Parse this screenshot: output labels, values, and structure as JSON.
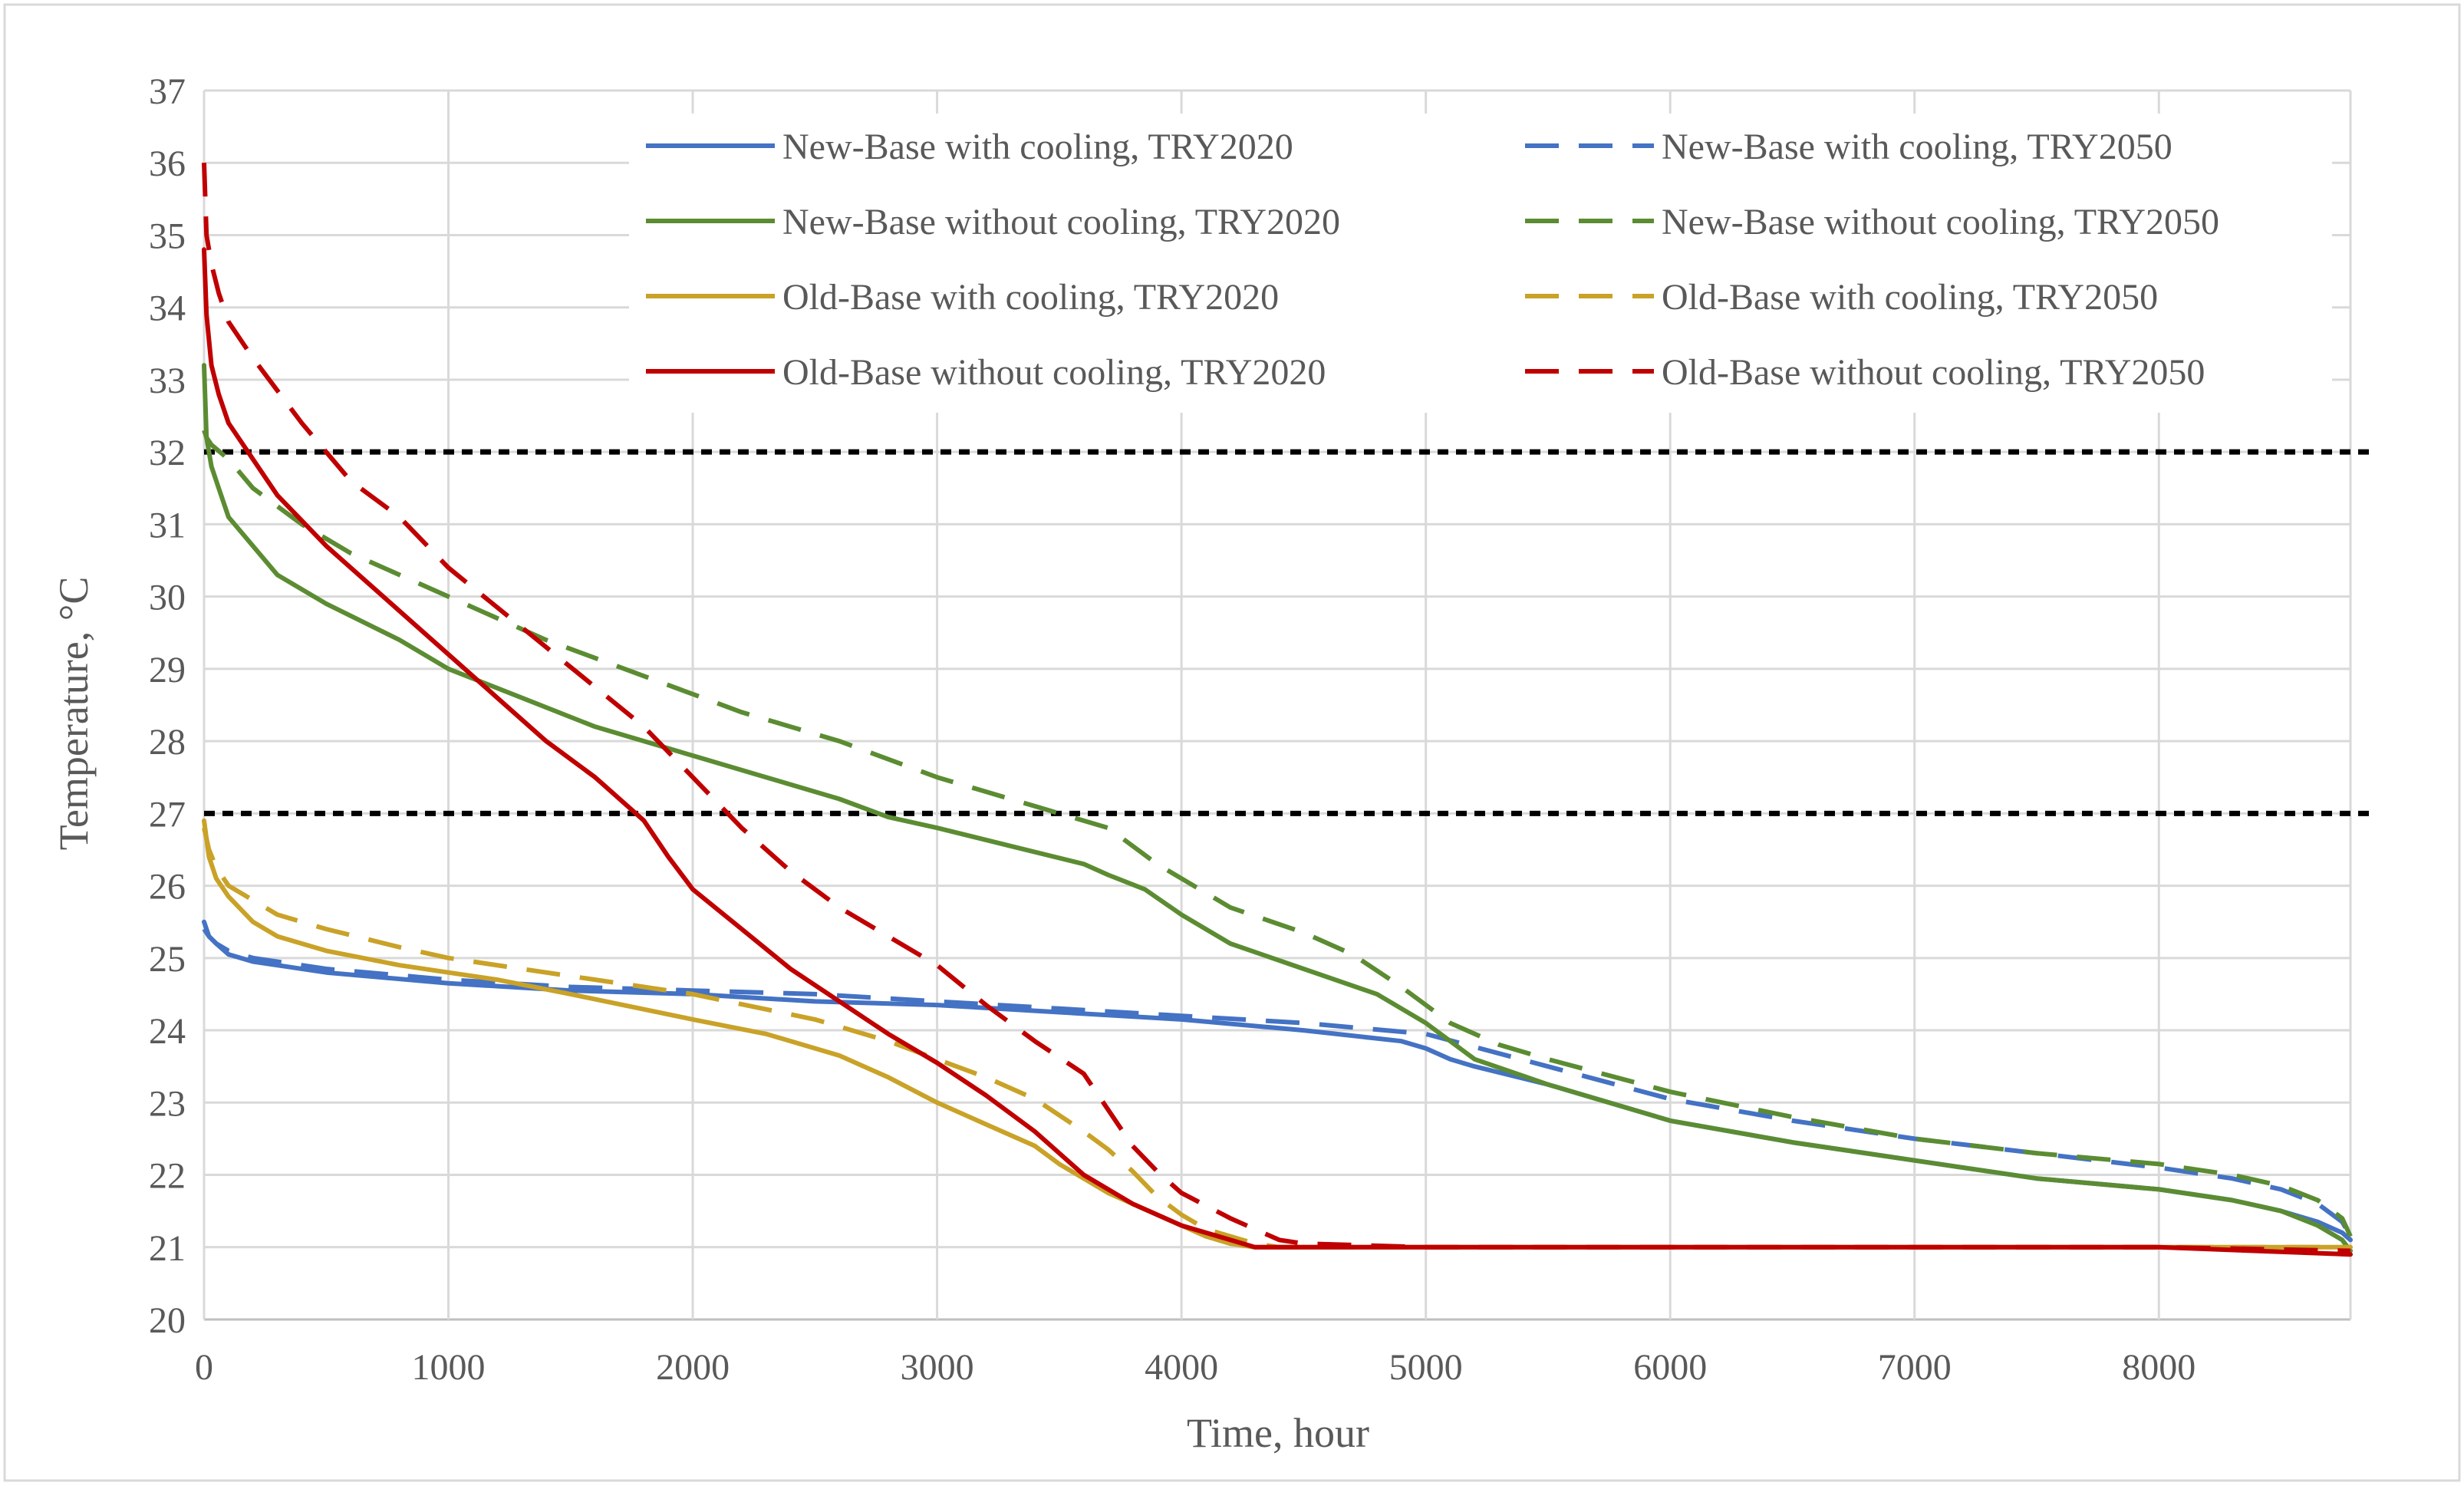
{
  "chart_data": {
    "type": "line",
    "title": "",
    "xlabel": "Time, hour",
    "ylabel": "Temperature, °C",
    "xlim": [
      0,
      8784
    ],
    "ylim": [
      20,
      37
    ],
    "xticks": [
      0,
      1000,
      2000,
      3000,
      4000,
      5000,
      6000,
      7000,
      8000
    ],
    "yticks": [
      20,
      21,
      22,
      23,
      24,
      25,
      26,
      27,
      28,
      29,
      30,
      31,
      32,
      33,
      34,
      35,
      36,
      37
    ],
    "grid": true,
    "legend_position": "top-right",
    "thresholds": [
      {
        "y": 32,
        "style": "dotted",
        "color": "#000000"
      },
      {
        "y": 27,
        "style": "dotted",
        "color": "#000000"
      }
    ],
    "series": [
      {
        "name": "New-Base with cooling, TRY2020",
        "color": "#4472C4",
        "dash": "solid",
        "x": [
          0,
          20,
          50,
          100,
          200,
          500,
          1000,
          1500,
          2000,
          2500,
          3000,
          3500,
          4000,
          4500,
          4900,
          5000,
          5100,
          5200,
          5500,
          6000,
          6500,
          7000,
          7500,
          8000,
          8300,
          8500,
          8650,
          8750,
          8784
        ],
        "y": [
          25.5,
          25.3,
          25.2,
          25.05,
          24.95,
          24.8,
          24.65,
          24.55,
          24.5,
          24.4,
          24.35,
          24.25,
          24.15,
          24.0,
          23.85,
          23.75,
          23.6,
          23.5,
          23.25,
          22.75,
          22.45,
          22.2,
          21.95,
          21.8,
          21.65,
          21.5,
          21.35,
          21.2,
          21.1
        ]
      },
      {
        "name": "New-Base with cooling, TRY2050",
        "color": "#4472C4",
        "dash": "dashed",
        "x": [
          0,
          20,
          50,
          100,
          200,
          500,
          1000,
          1500,
          2000,
          2500,
          3000,
          3500,
          4000,
          4500,
          5000,
          5500,
          6000,
          6500,
          7000,
          7500,
          8000,
          8300,
          8500,
          8650,
          8750,
          8784
        ],
        "y": [
          25.4,
          25.3,
          25.2,
          25.1,
          25.0,
          24.85,
          24.7,
          24.6,
          24.55,
          24.5,
          24.4,
          24.3,
          24.2,
          24.1,
          23.95,
          23.5,
          23.05,
          22.75,
          22.5,
          22.3,
          22.1,
          21.95,
          21.8,
          21.6,
          21.35,
          21.15
        ]
      },
      {
        "name": "New-Base without cooling, TRY2020",
        "color": "#5B8C32",
        "dash": "solid",
        "x": [
          0,
          10,
          30,
          60,
          100,
          200,
          300,
          500,
          800,
          1000,
          1300,
          1600,
          2000,
          2300,
          2600,
          2800,
          3000,
          3300,
          3600,
          3700,
          3850,
          4000,
          4200,
          4500,
          4800,
          5000,
          5100,
          5200,
          5500,
          6000,
          6500,
          7000,
          7500,
          8000,
          8300,
          8500,
          8650,
          8750,
          8784
        ],
        "y": [
          33.2,
          32.2,
          31.8,
          31.5,
          31.1,
          30.7,
          30.3,
          29.9,
          29.4,
          29.0,
          28.6,
          28.2,
          27.8,
          27.5,
          27.2,
          26.95,
          26.8,
          26.55,
          26.3,
          26.15,
          25.95,
          25.6,
          25.2,
          24.85,
          24.5,
          24.1,
          23.85,
          23.6,
          23.25,
          22.75,
          22.45,
          22.2,
          21.95,
          21.8,
          21.65,
          21.5,
          21.3,
          21.1,
          20.95
        ]
      },
      {
        "name": "New-Base without cooling, TRY2050",
        "color": "#5B8C32",
        "dash": "dashed",
        "x": [
          0,
          10,
          30,
          100,
          200,
          400,
          600,
          1000,
          1400,
          1800,
          2200,
          2600,
          3000,
          3400,
          3700,
          3900,
          4200,
          4500,
          4700,
          4900,
          5100,
          5300,
          5500,
          6000,
          6500,
          7000,
          7500,
          8000,
          8300,
          8500,
          8650,
          8750,
          8784
        ],
        "y": [
          32.3,
          32.2,
          32.1,
          31.9,
          31.5,
          31.0,
          30.6,
          30.0,
          29.4,
          28.9,
          28.4,
          28.0,
          27.5,
          27.1,
          26.8,
          26.3,
          25.7,
          25.35,
          25.05,
          24.6,
          24.1,
          23.8,
          23.6,
          23.15,
          22.8,
          22.5,
          22.3,
          22.15,
          22.0,
          21.85,
          21.65,
          21.4,
          21.15
        ]
      },
      {
        "name": "Old-Base with cooling, TRY2020",
        "color": "#C9A227",
        "dash": "solid",
        "x": [
          0,
          20,
          50,
          100,
          200,
          300,
          500,
          800,
          1000,
          1200,
          1500,
          2000,
          2300,
          2600,
          2800,
          3000,
          3200,
          3400,
          3500,
          3600,
          3700,
          3800,
          3900,
          4000,
          4100,
          4200,
          4300,
          4500,
          5000,
          6000,
          7000,
          8000,
          8784
        ],
        "y": [
          26.9,
          26.4,
          26.1,
          25.85,
          25.5,
          25.3,
          25.1,
          24.9,
          24.8,
          24.7,
          24.5,
          24.15,
          23.95,
          23.65,
          23.35,
          23.0,
          22.7,
          22.4,
          22.15,
          21.95,
          21.75,
          21.6,
          21.45,
          21.3,
          21.15,
          21.05,
          21.0,
          21.0,
          21.0,
          21.0,
          21.0,
          21.0,
          21.0
        ]
      },
      {
        "name": "Old-Base with cooling, TRY2050",
        "color": "#C9A227",
        "dash": "dashed",
        "x": [
          0,
          20,
          50,
          100,
          200,
          300,
          500,
          800,
          1000,
          1500,
          2000,
          2500,
          2800,
          3000,
          3200,
          3400,
          3600,
          3700,
          3800,
          3900,
          4000,
          4100,
          4200,
          4300,
          4400,
          4500,
          5000,
          6000,
          7000,
          8000,
          8784
        ],
        "y": [
          26.8,
          26.5,
          26.25,
          26.0,
          25.8,
          25.6,
          25.4,
          25.15,
          25.0,
          24.75,
          24.5,
          24.15,
          23.85,
          23.6,
          23.35,
          23.05,
          22.6,
          22.35,
          22.05,
          21.7,
          21.45,
          21.25,
          21.15,
          21.05,
          21.0,
          21.0,
          21.0,
          21.0,
          21.0,
          21.0,
          21.0
        ]
      },
      {
        "name": "Old-Base without cooling, TRY2020",
        "color": "#C00000",
        "dash": "solid",
        "x": [
          0,
          10,
          30,
          60,
          100,
          200,
          300,
          500,
          800,
          1000,
          1200,
          1400,
          1600,
          1800,
          1900,
          2000,
          2200,
          2400,
          2600,
          2800,
          3000,
          3200,
          3400,
          3600,
          3800,
          4000,
          4200,
          4300,
          4500,
          5000,
          6000,
          7000,
          8000,
          8784
        ],
        "y": [
          34.8,
          33.9,
          33.2,
          32.8,
          32.4,
          31.9,
          31.4,
          30.7,
          29.8,
          29.2,
          28.6,
          28.0,
          27.5,
          26.9,
          26.4,
          25.95,
          25.4,
          24.85,
          24.4,
          23.95,
          23.55,
          23.1,
          22.6,
          22.0,
          21.6,
          21.3,
          21.1,
          21.0,
          21.0,
          21.0,
          21.0,
          21.0,
          21.0,
          20.9
        ]
      },
      {
        "name": "Old-Base without cooling, TRY2050",
        "color": "#C00000",
        "dash": "dashed",
        "x": [
          0,
          10,
          30,
          60,
          100,
          200,
          400,
          600,
          800,
          1000,
          1400,
          1800,
          2000,
          2200,
          2400,
          2600,
          2800,
          3000,
          3200,
          3400,
          3600,
          3700,
          3800,
          3900,
          4000,
          4200,
          4400,
          4500,
          5000,
          6000,
          7000,
          8000,
          8784
        ],
        "y": [
          36.0,
          35.0,
          34.6,
          34.2,
          33.8,
          33.3,
          32.4,
          31.6,
          31.1,
          30.4,
          29.3,
          28.2,
          27.5,
          26.8,
          26.2,
          25.7,
          25.3,
          24.9,
          24.35,
          23.85,
          23.4,
          22.9,
          22.4,
          22.05,
          21.75,
          21.4,
          21.1,
          21.05,
          21.0,
          21.0,
          21.0,
          21.0,
          20.95
        ]
      }
    ]
  }
}
